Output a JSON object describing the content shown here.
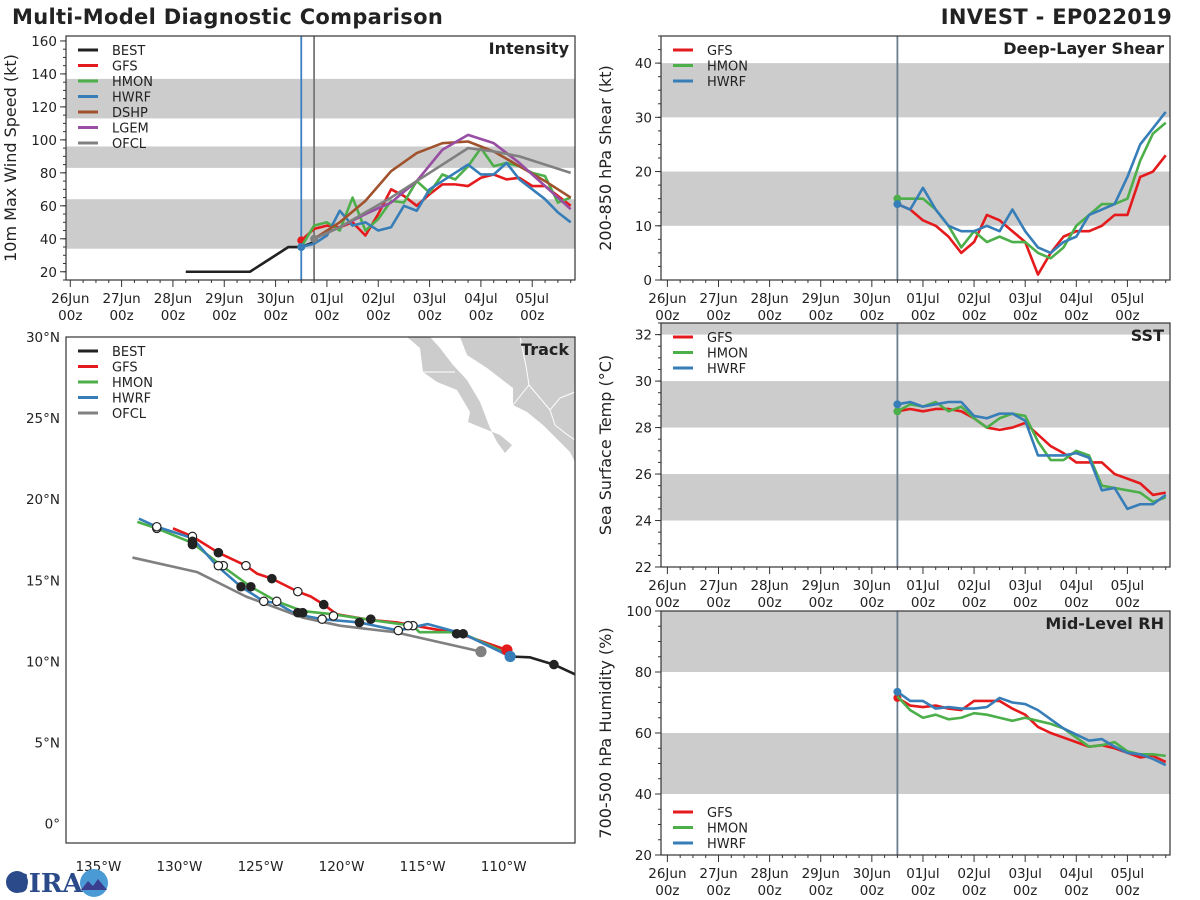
{
  "header": {
    "title": "Multi-Model Diagnostic Comparison",
    "storm": "INVEST - EP022019"
  },
  "logo": {
    "text": "CIRA"
  },
  "chart_data": [
    {
      "id": "intensity",
      "type": "line",
      "title": "Intensity",
      "ylabel": "10m Max Wind Speed (kt)",
      "ylim": [
        15,
        163
      ],
      "yticks": [
        20,
        40,
        60,
        80,
        100,
        120,
        140,
        160
      ],
      "xlim": [
        "25Jun 22z",
        "05Jul 20z"
      ],
      "xticks": [
        "26Jun 00z",
        "27Jun 00z",
        "28Jun 00z",
        "29Jun 00z",
        "30Jun 00z",
        "01Jul 00z",
        "02Jul 00z",
        "03Jul 00z",
        "04Jul 00z",
        "05Jul 00z"
      ],
      "bands": [
        [
          34,
          64
        ],
        [
          83,
          96
        ],
        [
          113,
          137
        ]
      ],
      "vlines": [
        {
          "time": "30Jun 12z",
          "color": "#3a80c2"
        },
        {
          "time": "30Jun 18z",
          "color": "#777777"
        }
      ],
      "legend": "top-left",
      "series": [
        {
          "name": "BEST",
          "color": "#222222",
          "start": "28Jun 06z",
          "step_hours": 6,
          "values": [
            20,
            20,
            20,
            20,
            20,
            20,
            25,
            30,
            35,
            35,
            38
          ]
        },
        {
          "name": "GFS",
          "color": "#e41a1c",
          "start": "30Jun 12z",
          "step_hours": 6,
          "dot": true,
          "values": [
            39,
            46,
            48,
            47,
            50,
            42,
            55,
            70,
            66,
            60,
            67,
            73,
            73,
            72,
            77,
            79,
            76,
            77,
            72,
            72,
            66,
            60
          ]
        },
        {
          "name": "HMON",
          "color": "#4daf4a",
          "start": "30Jun 12z",
          "step_hours": 6,
          "values": [
            35,
            48,
            50,
            45,
            65,
            45,
            52,
            63,
            62,
            75,
            68,
            79,
            76,
            84,
            95,
            84,
            86,
            84,
            80,
            78,
            62,
            65
          ]
        },
        {
          "name": "HWRF",
          "color": "#377eb8",
          "start": "30Jun 12z",
          "step_hours": 6,
          "dot": true,
          "values": [
            35,
            37,
            42,
            57,
            48,
            50,
            45,
            47,
            60,
            57,
            70,
            75,
            80,
            85,
            79,
            79,
            86,
            76,
            70,
            64,
            56,
            50
          ]
        },
        {
          "name": "DSHP",
          "color": "#a0522d",
          "start": "30Jun 18z",
          "step_hours": 12,
          "values": [
            40,
            50,
            63,
            81,
            92,
            98,
            99,
            93,
            84,
            75,
            65
          ]
        },
        {
          "name": "LGEM",
          "color": "#984ea3",
          "start": "30Jun 18z",
          "step_hours": 12,
          "values": [
            40,
            47,
            55,
            62,
            75,
            94,
            103,
            98,
            86,
            72,
            58
          ]
        },
        {
          "name": "OFCL",
          "color": "#808080",
          "start": "30Jun 18z",
          "step_hours": 12,
          "dot": true,
          "values": [
            40,
            47,
            56,
            65,
            75,
            85,
            95,
            93,
            90,
            85,
            80
          ]
        }
      ]
    },
    {
      "id": "shear",
      "type": "line",
      "title": "Deep-Layer Shear",
      "ylabel": "200-850 hPa Shear (kt)",
      "ylim": [
        0,
        45
      ],
      "yticks": [
        0,
        10,
        20,
        30,
        40
      ],
      "xlim": [
        "25Jun 21z",
        "05Jul 20z"
      ],
      "xticks": [
        "26Jun 00z",
        "27Jun 00z",
        "28Jun 00z",
        "29Jun 00z",
        "30Jun 00z",
        "01Jul 00z",
        "02Jul 00z",
        "03Jul 00z",
        "04Jul 00z",
        "05Jul 00z"
      ],
      "bands": [
        [
          10,
          20
        ],
        [
          30,
          40
        ]
      ],
      "vlines": [
        {
          "time": "30Jun 12z",
          "color": "#6b7e90"
        }
      ],
      "legend": "top-left",
      "series": [
        {
          "name": "GFS",
          "color": "#e41a1c",
          "start": "30Jun 12z",
          "step_hours": 6,
          "values": [
            14,
            13,
            11,
            10,
            8,
            5,
            7,
            12,
            11,
            9,
            7,
            1,
            5,
            8,
            9,
            9,
            10,
            12,
            12,
            19,
            20,
            23
          ]
        },
        {
          "name": "HMON",
          "color": "#4daf4a",
          "start": "30Jun 12z",
          "step_hours": 6,
          "dot": true,
          "values": [
            15,
            15,
            15,
            13,
            10,
            6,
            9,
            7,
            8,
            7,
            7,
            5,
            4,
            6,
            10,
            12,
            14,
            14,
            15,
            22,
            27,
            29
          ]
        },
        {
          "name": "HWRF",
          "color": "#377eb8",
          "start": "30Jun 12z",
          "step_hours": 6,
          "dot": true,
          "values": [
            14,
            13,
            17,
            13,
            10,
            9,
            9,
            10,
            9,
            13,
            9,
            6,
            5,
            7,
            8,
            12,
            13,
            14,
            19,
            25,
            28,
            31
          ]
        }
      ]
    },
    {
      "id": "sst",
      "type": "line",
      "title": "SST",
      "ylabel": "Sea Surface Temp (°C)",
      "ylim": [
        22,
        32.5
      ],
      "yticks": [
        22,
        24,
        26,
        28,
        30,
        32
      ],
      "xlim": [
        "25Jun 21z",
        "05Jul 20z"
      ],
      "xticks": [
        "26Jun 00z",
        "27Jun 00z",
        "28Jun 00z",
        "29Jun 00z",
        "30Jun 00z",
        "01Jul 00z",
        "02Jul 00z",
        "03Jul 00z",
        "04Jul 00z",
        "05Jul 00z"
      ],
      "bands": [
        [
          24,
          26
        ],
        [
          28,
          30
        ],
        [
          32,
          32.5
        ]
      ],
      "vlines": [
        {
          "time": "30Jun 12z",
          "color": "#6b7e90"
        }
      ],
      "legend": "top-left",
      "series": [
        {
          "name": "GFS",
          "color": "#e41a1c",
          "start": "30Jun 12z",
          "step_hours": 6,
          "values": [
            28.7,
            28.8,
            28.7,
            28.8,
            28.8,
            28.7,
            28.4,
            28.0,
            27.9,
            28.0,
            28.2,
            27.7,
            27.2,
            26.9,
            26.5,
            26.5,
            26.5,
            26.0,
            25.8,
            25.6,
            25.1,
            25.2
          ]
        },
        {
          "name": "HMON",
          "color": "#4daf4a",
          "start": "30Jun 12z",
          "step_hours": 6,
          "dot": true,
          "values": [
            28.7,
            29.0,
            28.9,
            29.1,
            28.7,
            28.9,
            28.4,
            28.0,
            28.4,
            28.6,
            28.5,
            27.4,
            26.6,
            26.6,
            27.0,
            26.8,
            25.5,
            25.4,
            25.3,
            25.2,
            24.8,
            25.0
          ]
        },
        {
          "name": "HWRF",
          "color": "#377eb8",
          "start": "30Jun 12z",
          "step_hours": 6,
          "dot": true,
          "values": [
            29.0,
            29.1,
            28.9,
            29.0,
            29.1,
            29.1,
            28.5,
            28.4,
            28.6,
            28.6,
            28.3,
            26.8,
            26.8,
            26.8,
            26.9,
            26.7,
            25.3,
            25.4,
            24.5,
            24.7,
            24.7,
            25.1
          ]
        }
      ]
    },
    {
      "id": "rh",
      "type": "line",
      "title": "Mid-Level RH",
      "ylabel": "700-500 hPa Humidity (%)",
      "ylim": [
        20,
        100
      ],
      "yticks": [
        20,
        40,
        60,
        80,
        100
      ],
      "xlim": [
        "25Jun 21z",
        "05Jul 20z"
      ],
      "xticks": [
        "26Jun 00z",
        "27Jun 00z",
        "28Jun 00z",
        "29Jun 00z",
        "30Jun 00z",
        "01Jul 00z",
        "02Jul 00z",
        "03Jul 00z",
        "04Jul 00z",
        "05Jul 00z"
      ],
      "bands": [
        [
          40,
          60
        ],
        [
          80,
          100
        ]
      ],
      "vlines": [
        {
          "time": "30Jun 12z",
          "color": "#6b7e90"
        }
      ],
      "legend": "bottom-left",
      "series": [
        {
          "name": "GFS",
          "color": "#e41a1c",
          "start": "30Jun 12z",
          "step_hours": 6,
          "dot": true,
          "values": [
            71.5,
            69,
            68.5,
            69,
            68,
            67.5,
            70.5,
            70.5,
            70.5,
            68,
            66,
            62,
            60,
            58.5,
            57,
            55.5,
            56,
            55,
            53.5,
            52,
            52.5,
            50.5
          ]
        },
        {
          "name": "HMON",
          "color": "#4daf4a",
          "start": "30Jun 12z",
          "step_hours": 6,
          "values": [
            72,
            67.5,
            65,
            66,
            64.5,
            65,
            66.5,
            66,
            65,
            64,
            65,
            64,
            63,
            61.5,
            58.5,
            55.5,
            56,
            57,
            54,
            53,
            53,
            52.5
          ]
        },
        {
          "name": "HWRF",
          "color": "#377eb8",
          "start": "30Jun 12z",
          "step_hours": 6,
          "dot": true,
          "values": [
            73.5,
            70.5,
            70.5,
            68,
            68.5,
            68,
            68,
            68.5,
            71.5,
            70,
            69.5,
            67.5,
            64.5,
            61.5,
            59.5,
            57.5,
            58,
            55.5,
            53.5,
            53,
            51.5,
            49.5
          ]
        }
      ]
    },
    {
      "id": "track",
      "type": "map",
      "title": "Track",
      "lonlim": [
        -137.0,
        -105.6
      ],
      "latlim": [
        -1.2,
        30.0
      ],
      "lonticks": [
        -135,
        -130,
        -125,
        -120,
        -115,
        -110
      ],
      "lonlabels": [
        "135°W",
        "130°W",
        "125°W",
        "120°W",
        "115°W",
        "110°W"
      ],
      "latticks": [
        0,
        5,
        10,
        15,
        20,
        25,
        30
      ],
      "latlabels": [
        "0°",
        "5°N",
        "10°N",
        "15°N",
        "20°N",
        "25°N",
        "30°N"
      ],
      "land_color": "#cccccc",
      "legend": "top-left",
      "series": [
        {
          "name": "BEST",
          "color": "#222222",
          "points": [
            [
              -105.6,
              9.2
            ],
            [
              -106.9,
              9.8
            ],
            [
              -108.4,
              10.25
            ],
            [
              -109.6,
              10.3
            ]
          ],
          "markers": [
            [
              -106.9,
              9.8,
              "filled"
            ]
          ]
        },
        {
          "name": "GFS",
          "color": "#e41a1c",
          "points": [
            [
              -109.8,
              10.7
            ],
            [
              -112.7,
              11.7
            ],
            [
              -116.6,
              12.4
            ],
            [
              -118.2,
              12.55
            ],
            [
              -120.3,
              12.9
            ],
            [
              -121.1,
              13.5
            ],
            [
              -121.9,
              14.0
            ],
            [
              -122.7,
              14.3
            ],
            [
              -124.3,
              15.1
            ],
            [
              -125.2,
              15.4
            ],
            [
              -125.9,
              15.9
            ],
            [
              -127.6,
              16.7
            ],
            [
              -129.2,
              17.7
            ],
            [
              -130.4,
              18.2
            ]
          ],
          "markers": [
            [
              -109.8,
              10.7,
              "start"
            ],
            [
              -121.1,
              13.5,
              "filled"
            ],
            [
              -122.7,
              14.3,
              "open"
            ],
            [
              -124.3,
              15.1,
              "filled"
            ],
            [
              -125.9,
              15.9,
              "open"
            ],
            [
              -127.6,
              16.7,
              "filled"
            ],
            [
              -129.2,
              17.7,
              "open"
            ]
          ]
        },
        {
          "name": "HMON",
          "color": "#4daf4a",
          "points": [
            [
              -109.6,
              10.4
            ],
            [
              -112.7,
              11.8
            ],
            [
              -115.2,
              11.8
            ],
            [
              -115.6,
              12.2
            ],
            [
              -118.2,
              12.55
            ],
            [
              -120.5,
              12.9
            ],
            [
              -122.4,
              13.1
            ],
            [
              -124.0,
              13.7
            ],
            [
              -125.6,
              14.6
            ],
            [
              -127.4,
              15.9
            ],
            [
              -129.2,
              17.3
            ],
            [
              -131.4,
              18.2
            ],
            [
              -132.6,
              18.6
            ]
          ],
          "markers": [
            [
              -112.5,
              11.7,
              "filled"
            ],
            [
              -115.6,
              12.2,
              "open"
            ],
            [
              -118.2,
              12.6,
              "filled"
            ],
            [
              -120.5,
              12.8,
              "open"
            ],
            [
              -122.4,
              13.0,
              "filled"
            ],
            [
              -124.0,
              13.7,
              "open"
            ],
            [
              -125.6,
              14.6,
              "filled"
            ],
            [
              -127.3,
              15.9,
              "open"
            ],
            [
              -129.2,
              17.2,
              "filled"
            ],
            [
              -131.4,
              18.2,
              "open"
            ]
          ]
        },
        {
          "name": "HWRF",
          "color": "#377eb8",
          "points": [
            [
              -109.6,
              10.3
            ],
            [
              -112.5,
              11.7
            ],
            [
              -114.7,
              12.3
            ],
            [
              -116.5,
              11.9
            ],
            [
              -118.9,
              12.4
            ],
            [
              -121.2,
              12.6
            ],
            [
              -122.8,
              12.9
            ],
            [
              -124.0,
              13.6
            ],
            [
              -124.8,
              13.7
            ],
            [
              -126.2,
              14.6
            ],
            [
              -127.7,
              15.9
            ],
            [
              -129.2,
              17.6
            ],
            [
              -131.4,
              18.3
            ],
            [
              -132.5,
              18.8
            ]
          ],
          "markers": [
            [
              -109.6,
              10.3,
              "start"
            ],
            [
              -112.9,
              11.7,
              "filled"
            ],
            [
              -115.9,
              12.2,
              "open"
            ],
            [
              -116.5,
              11.9,
              "open"
            ],
            [
              -118.9,
              12.4,
              "filled"
            ],
            [
              -121.2,
              12.6,
              "open"
            ],
            [
              -122.7,
              13.0,
              "filled"
            ],
            [
              -124.8,
              13.7,
              "open"
            ],
            [
              -126.2,
              14.6,
              "filled"
            ],
            [
              -127.6,
              15.9,
              "open"
            ],
            [
              -129.2,
              17.4,
              "filled"
            ],
            [
              -131.4,
              18.3,
              "open"
            ]
          ]
        },
        {
          "name": "OFCL",
          "color": "#808080",
          "points": [
            [
              -111.4,
              10.6
            ],
            [
              -116.7,
              11.8
            ],
            [
              -120.1,
              12.2
            ],
            [
              -122.4,
              12.7
            ],
            [
              -125.9,
              14.0
            ],
            [
              -128.9,
              15.5
            ],
            [
              -132.9,
              16.4
            ]
          ],
          "markers": [
            [
              -111.4,
              10.6,
              "start"
            ]
          ]
        }
      ]
    }
  ]
}
